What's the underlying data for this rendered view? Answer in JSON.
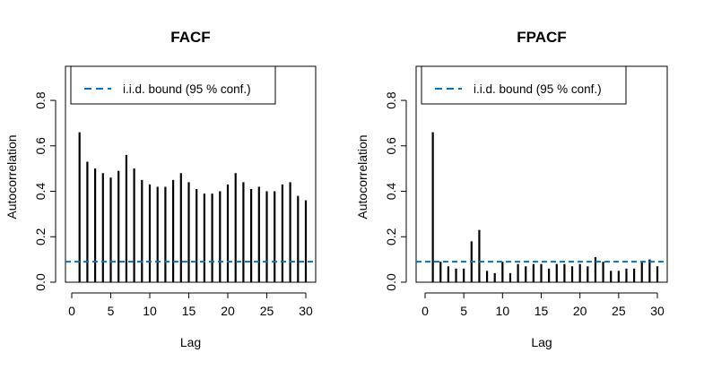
{
  "chart_data": [
    {
      "type": "bar",
      "title": "FACF",
      "xlabel": "Lag",
      "ylabel": "Autocorrelation",
      "x": [
        1,
        2,
        3,
        4,
        5,
        6,
        7,
        8,
        9,
        10,
        11,
        12,
        13,
        14,
        15,
        16,
        17,
        18,
        19,
        20,
        21,
        22,
        23,
        24,
        25,
        26,
        27,
        28,
        29,
        30
      ],
      "values": [
        0.66,
        0.53,
        0.5,
        0.48,
        0.46,
        0.49,
        0.56,
        0.5,
        0.45,
        0.43,
        0.42,
        0.42,
        0.45,
        0.48,
        0.44,
        0.41,
        0.39,
        0.39,
        0.4,
        0.43,
        0.48,
        0.44,
        0.41,
        0.42,
        0.4,
        0.4,
        0.43,
        0.44,
        0.38,
        0.36
      ],
      "xlim": [
        0,
        30
      ],
      "ylim": [
        0,
        0.95
      ],
      "xticks": [
        "0",
        "5",
        "10",
        "15",
        "20",
        "25",
        "30"
      ],
      "yticks": [
        "0.0",
        "0.2",
        "0.4",
        "0.6",
        "0.8"
      ],
      "bound": 0.09,
      "bound_color": "#0073c2",
      "legend": {
        "label": "i.i.d. bound (95 % conf.)",
        "position": "top-left"
      }
    },
    {
      "type": "bar",
      "title": "FPACF",
      "xlabel": "Lag",
      "ylabel": "Autocorrelation",
      "x": [
        1,
        2,
        3,
        4,
        5,
        6,
        7,
        8,
        9,
        10,
        11,
        12,
        13,
        14,
        15,
        16,
        17,
        18,
        19,
        20,
        21,
        22,
        23,
        24,
        25,
        26,
        27,
        28,
        29,
        30
      ],
      "values": [
        0.66,
        0.09,
        0.07,
        0.06,
        0.06,
        0.18,
        0.23,
        0.05,
        0.04,
        0.09,
        0.04,
        0.08,
        0.07,
        0.08,
        0.08,
        0.06,
        0.08,
        0.08,
        0.07,
        0.08,
        0.07,
        0.11,
        0.09,
        0.05,
        0.05,
        0.06,
        0.06,
        0.09,
        0.1,
        0.07
      ],
      "xlim": [
        0,
        30
      ],
      "ylim": [
        0,
        0.95
      ],
      "xticks": [
        "0",
        "5",
        "10",
        "15",
        "20",
        "25",
        "30"
      ],
      "yticks": [
        "0.0",
        "0.2",
        "0.4",
        "0.6",
        "0.8"
      ],
      "bound": 0.09,
      "bound_color": "#0073c2",
      "legend": {
        "label": "i.i.d. bound (95 % conf.)",
        "position": "top-left"
      }
    }
  ]
}
